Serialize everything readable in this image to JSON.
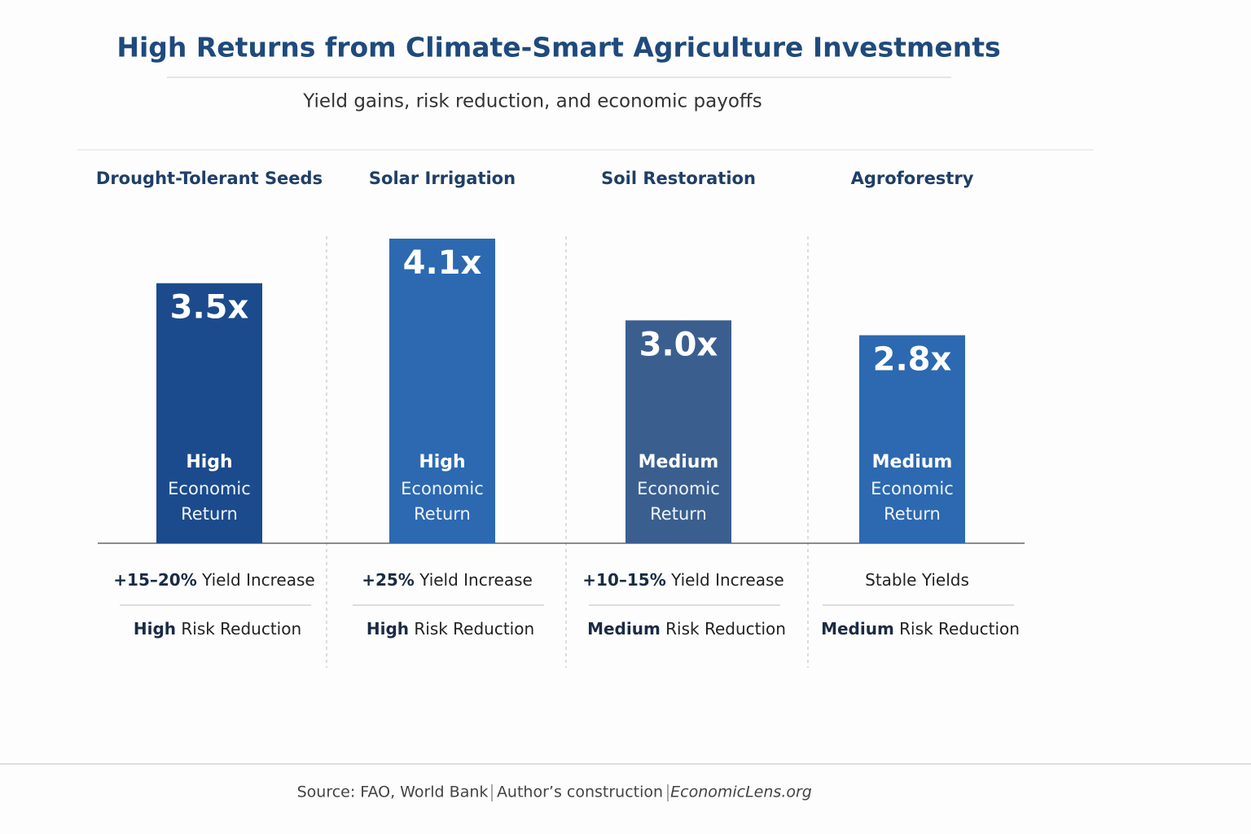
{
  "chart_data": {
    "type": "bar",
    "title": "High Returns from Climate-Smart Agriculture Investments",
    "subtitle": "Yield gains, risk reduction, and economic payoffs",
    "categories": [
      "Drought-Tolerant Seeds",
      "Solar Irrigation",
      "Soil Restoration",
      "Agroforestry"
    ],
    "values": [
      3.5,
      4.1,
      3.0,
      2.8
    ],
    "value_labels": [
      "3.5x",
      "4.1x",
      "3.0x",
      "2.8x"
    ],
    "colors": [
      "#1b4b8c",
      "#2c69b1",
      "#3a5f8f",
      "#2c69b1"
    ],
    "return_levels": [
      "High",
      "High",
      "Medium",
      "Medium"
    ],
    "return_label_lines": [
      "Economic",
      "Return"
    ],
    "yield_labels": [
      {
        "figure": "+15–20%",
        "text": "Yield Increase"
      },
      {
        "figure": "+25%",
        "text": "Yield Increase"
      },
      {
        "figure": "+10–15%",
        "text": "Yield Increase"
      },
      {
        "text": "Stable Yields"
      }
    ],
    "risk_levels": [
      "High",
      "High",
      "Medium",
      "Medium"
    ],
    "risk_label": "Risk Reduction",
    "source": [
      "Source: FAO, World Bank",
      "Author’s construction",
      "EconomicLens.org"
    ]
  }
}
